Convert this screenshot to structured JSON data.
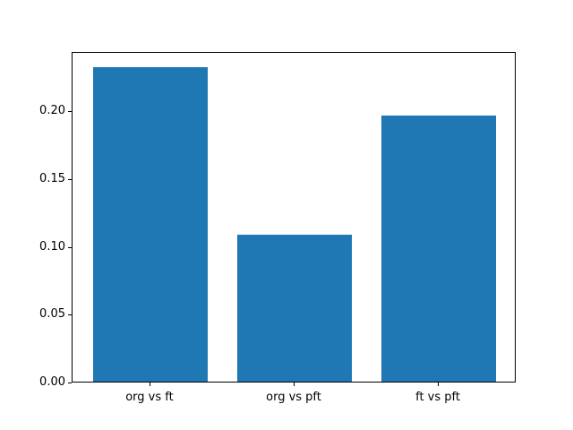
{
  "chart_data": {
    "type": "bar",
    "categories": [
      "org vs ft",
      "org vs pft",
      "ft vs pft"
    ],
    "values": [
      0.232,
      0.108,
      0.196
    ],
    "title": "",
    "xlabel": "",
    "ylabel": "",
    "ylim": [
      0,
      0.2436
    ],
    "xlim": [
      -0.54,
      2.54
    ],
    "yticks": [
      0,
      0.05,
      0.1,
      0.15,
      0.2
    ],
    "ytick_labels": [
      "0.00",
      "0.05",
      "0.10",
      "0.15",
      "0.20"
    ],
    "bar_width_fraction": 0.8,
    "bar_color": "#1f77b4",
    "spine_color": "#000000",
    "tick_color": "#000000",
    "text_color": "#000000",
    "background_color": "#ffffff",
    "grid": false,
    "legend": false
  }
}
